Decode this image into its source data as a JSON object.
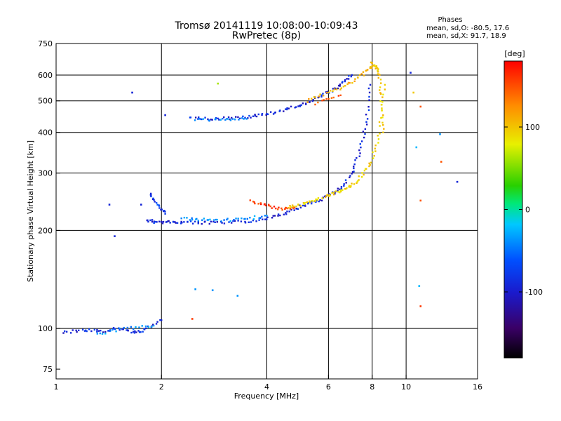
{
  "chart_data": {
    "type": "scatter",
    "title": "Tromsø 20141119 10:08:00-10:09:43",
    "subtitle": "RwPretec (8p)",
    "stats": {
      "heading": "Phases",
      "line_o": "mean, sd,O: -80.5, 17.6",
      "line_x": "mean, sd,X:  91.7, 18.9"
    },
    "xlabel": "Frequency [MHz]",
    "ylabel": "Stationary phase Virtual Height [km]",
    "x_scale": "log",
    "y_scale": "log",
    "xlim": [
      1,
      16
    ],
    "ylim": [
      70,
      750
    ],
    "x_ticks": [
      1,
      2,
      4,
      6,
      8,
      10,
      16
    ],
    "x_tick_labels": [
      "1",
      "2",
      "4",
      "6",
      "8",
      "10",
      "16"
    ],
    "y_ticks": [
      75,
      100,
      200,
      300,
      400,
      500,
      600,
      750
    ],
    "y_tick_labels": [
      "75",
      "100",
      "200",
      "300",
      "400",
      "500",
      "600",
      "750"
    ],
    "grid": true,
    "colorbar": {
      "label": "[deg]",
      "range": [
        -180,
        180
      ],
      "ticks": [
        100,
        0,
        -100
      ],
      "tick_labels": [
        "100",
        "0",
        "-100"
      ]
    },
    "traces": [
      {
        "x": [
          1.82,
          1.95,
          2.1,
          2.3,
          2.6,
          3.0,
          3.5,
          4.0,
          4.5,
          5.0
        ],
        "y": [
          215,
          212,
          212,
          212,
          211,
          211,
          213,
          218,
          225,
          235
        ],
        "phase": -110
      },
      {
        "x": [
          2.3,
          2.6,
          3.0,
          3.5,
          4.0
        ],
        "y": [
          218,
          216,
          215,
          217,
          222
        ],
        "phase": -70
      },
      {
        "x": [
          1.85,
          1.95,
          2.05
        ],
        "y": [
          260,
          240,
          225
        ],
        "phase": -100
      },
      {
        "x": [
          3.6,
          4.0,
          4.4,
          4.8
        ],
        "y": [
          245,
          240,
          232,
          235
        ],
        "phase": 160
      },
      {
        "x": [
          5.0,
          5.5,
          6.0,
          6.5,
          7.0,
          7.4,
          7.7,
          7.9
        ],
        "y": [
          238,
          245,
          255,
          270,
          300,
          350,
          430,
          560
        ],
        "phase": -110
      },
      {
        "x": [
          4.6,
          5.0,
          5.5,
          6.0,
          6.5,
          7.0,
          7.5,
          8.0,
          8.4,
          8.7
        ],
        "y": [
          236,
          240,
          247,
          256,
          265,
          275,
          295,
          330,
          400,
          560
        ],
        "phase": 95
      },
      {
        "x": [
          2.4,
          2.8,
          3.2,
          3.6,
          4.0,
          4.5,
          5.0,
          5.5,
          6.0,
          6.5,
          7.0
        ],
        "y": [
          445,
          440,
          442,
          448,
          455,
          470,
          485,
          505,
          530,
          560,
          600
        ],
        "phase": -110
      },
      {
        "x": [
          2.5,
          3.0,
          3.5
        ],
        "y": [
          440,
          437,
          440
        ],
        "phase": -70
      },
      {
        "x": [
          5.2,
          6.0,
          6.8,
          7.5,
          8.0
        ],
        "y": [
          500,
          530,
          560,
          600,
          640
        ],
        "phase": 110
      },
      {
        "x": [
          5.5,
          6.5
        ],
        "y": [
          490,
          520
        ],
        "phase": 150
      },
      {
        "x": [
          8.0,
          8.2,
          8.4,
          8.5,
          8.6
        ],
        "y": [
          650,
          640,
          600,
          500,
          400
        ],
        "phase": 100
      },
      {
        "x": [
          1.05,
          1.2,
          1.35,
          1.5,
          1.65,
          1.8,
          2.0
        ],
        "y": [
          97,
          99,
          98,
          100,
          97,
          99,
          106
        ],
        "phase": -110
      },
      {
        "x": [
          1.3,
          1.6,
          1.9
        ],
        "y": [
          96,
          100,
          102
        ],
        "phase": -70
      }
    ],
    "isolated_points": [
      {
        "x": 2.45,
        "y": 107,
        "phase": 160
      },
      {
        "x": 2.5,
        "y": 132,
        "phase": -70
      },
      {
        "x": 2.8,
        "y": 131,
        "phase": -70
      },
      {
        "x": 3.3,
        "y": 126,
        "phase": -70
      },
      {
        "x": 1.42,
        "y": 240,
        "phase": -110
      },
      {
        "x": 1.47,
        "y": 192,
        "phase": -110
      },
      {
        "x": 1.75,
        "y": 240,
        "phase": -110
      },
      {
        "x": 1.65,
        "y": 530,
        "phase": -110
      },
      {
        "x": 2.05,
        "y": 452,
        "phase": -110
      },
      {
        "x": 2.9,
        "y": 565,
        "phase": 60
      },
      {
        "x": 10.3,
        "y": 610,
        "phase": -110
      },
      {
        "x": 11.0,
        "y": 480,
        "phase": 150
      },
      {
        "x": 10.9,
        "y": 135,
        "phase": -60
      },
      {
        "x": 11.0,
        "y": 117,
        "phase": 160
      },
      {
        "x": 12.5,
        "y": 395,
        "phase": -70
      },
      {
        "x": 12.6,
        "y": 325,
        "phase": 150
      },
      {
        "x": 14.0,
        "y": 282,
        "phase": -110
      },
      {
        "x": 11.0,
        "y": 247,
        "phase": 150
      },
      {
        "x": 10.7,
        "y": 360,
        "phase": -60
      },
      {
        "x": 10.5,
        "y": 530,
        "phase": 100
      }
    ]
  }
}
